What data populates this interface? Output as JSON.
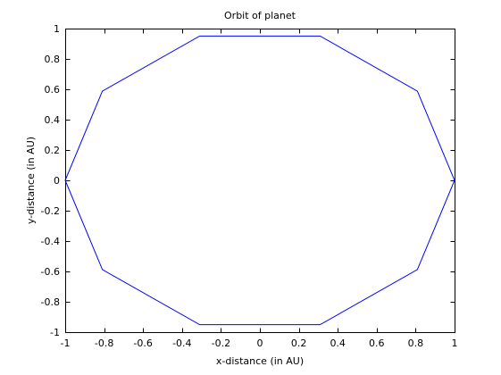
{
  "chart_data": {
    "type": "line",
    "title": "Orbit of planet",
    "xlabel": "x-distance (in AU)",
    "ylabel": "y-distance (in AU)",
    "xlim": [
      -1,
      1
    ],
    "ylim": [
      -1,
      1
    ],
    "grid": false,
    "xticks": [
      -1,
      -0.8,
      -0.6,
      -0.4,
      -0.2,
      0,
      0.2,
      0.4,
      0.6,
      0.8,
      1
    ],
    "xtick_labels": [
      "-1",
      "-0.8",
      "-0.6",
      "-0.4",
      "-0.2",
      "0",
      "0.2",
      "0.4",
      "0.6",
      "0.8",
      "1"
    ],
    "yticks": [
      -1,
      -0.8,
      -0.6,
      -0.4,
      -0.2,
      0,
      0.2,
      0.4,
      0.6,
      0.8,
      1
    ],
    "ytick_labels": [
      "-1",
      "-0.8",
      "-0.6",
      "-0.4",
      "-0.2",
      "0",
      "0.2",
      "0.4",
      "0.6",
      "0.8",
      "1"
    ],
    "series": [
      {
        "color": "#0000ff",
        "x": [
          1,
          0.809,
          0.309,
          -0.309,
          -0.809,
          -1,
          -0.809,
          -0.309,
          0.309,
          0.809,
          1
        ],
        "y": [
          0,
          0.588,
          0.951,
          0.951,
          0.588,
          0,
          -0.588,
          -0.951,
          -0.951,
          -0.588,
          0
        ]
      }
    ]
  }
}
